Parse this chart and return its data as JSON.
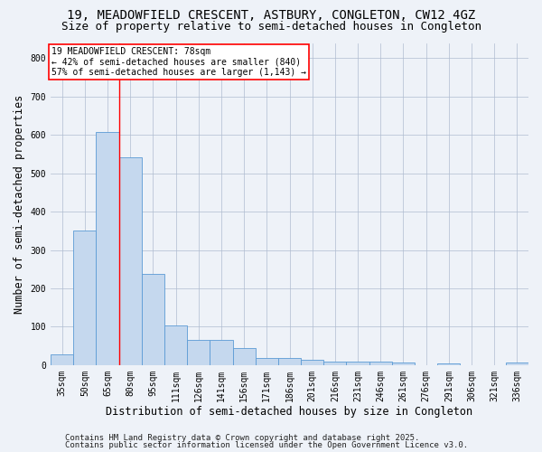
{
  "title": "19, MEADOWFIELD CRESCENT, ASTBURY, CONGLETON, CW12 4GZ",
  "subtitle": "Size of property relative to semi-detached houses in Congleton",
  "xlabel": "Distribution of semi-detached houses by size in Congleton",
  "ylabel": "Number of semi-detached properties",
  "categories": [
    "35sqm",
    "50sqm",
    "65sqm",
    "80sqm",
    "95sqm",
    "111sqm",
    "126sqm",
    "141sqm",
    "156sqm",
    "171sqm",
    "186sqm",
    "201sqm",
    "216sqm",
    "231sqm",
    "246sqm",
    "261sqm",
    "276sqm",
    "291sqm",
    "306sqm",
    "321sqm",
    "336sqm"
  ],
  "values": [
    28,
    350,
    608,
    542,
    238,
    103,
    65,
    65,
    44,
    18,
    18,
    13,
    9,
    9,
    9,
    6,
    0,
    5,
    0,
    0,
    6
  ],
  "bar_color": "#c5d8ee",
  "bar_edge_color": "#5b9bd5",
  "red_line_x": 2.5,
  "annotation_title": "19 MEADOWFIELD CRESCENT: 78sqm",
  "annotation_line1": "← 42% of semi-detached houses are smaller (840)",
  "annotation_line2": "57% of semi-detached houses are larger (1,143) →",
  "ylim": [
    0,
    840
  ],
  "yticks": [
    0,
    100,
    200,
    300,
    400,
    500,
    600,
    700,
    800
  ],
  "footer1": "Contains HM Land Registry data © Crown copyright and database right 2025.",
  "footer2": "Contains public sector information licensed under the Open Government Licence v3.0.",
  "bg_color": "#eef2f8",
  "plot_bg_color": "#eef2f8",
  "title_fontsize": 10,
  "subtitle_fontsize": 9,
  "axis_label_fontsize": 8.5,
  "tick_fontsize": 7,
  "footer_fontsize": 6.5
}
